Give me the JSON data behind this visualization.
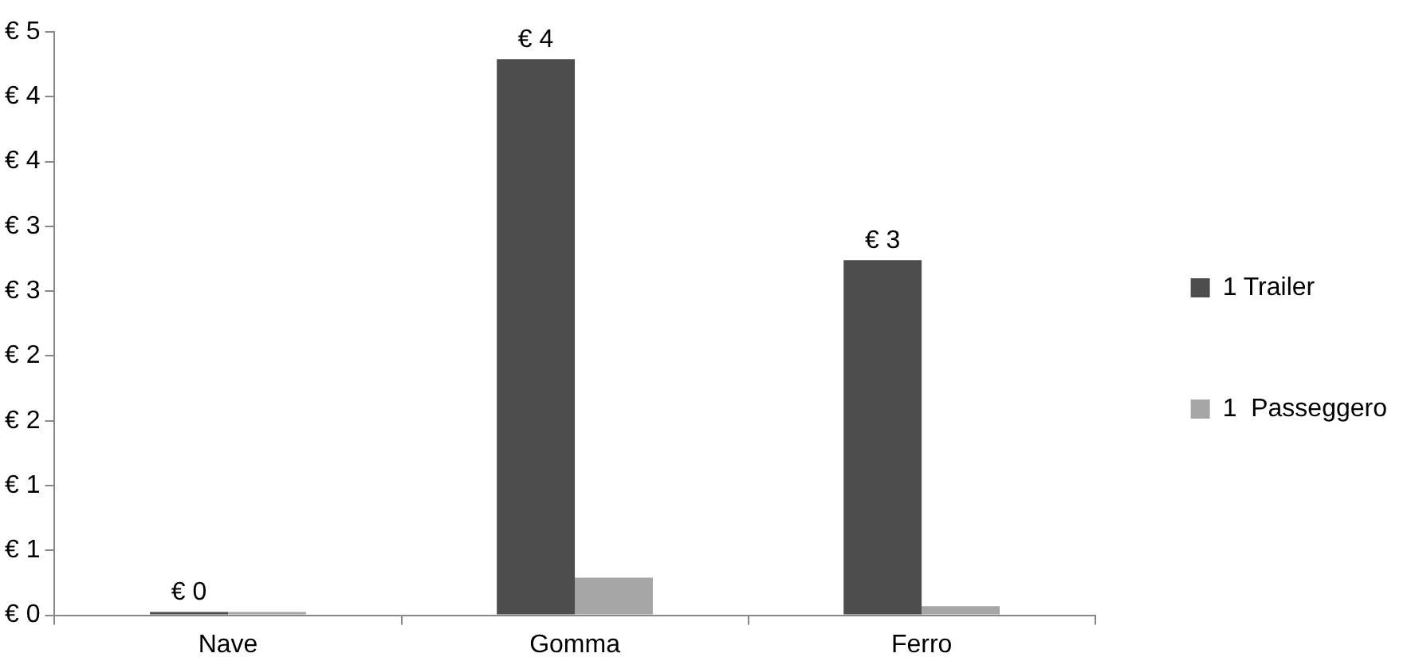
{
  "chart_data": {
    "type": "bar",
    "categories": [
      "Nave",
      "Gomma",
      "Ferro"
    ],
    "series": [
      {
        "name": "1 Trailer",
        "color": "#4d4d4d",
        "values": [
          0,
          4.29,
          2.74
        ],
        "value_labels": [
          "€ 0",
          "€ 4",
          "€ 3"
        ]
      },
      {
        "name": "1  Passeggero",
        "color": "#a6a6a6",
        "values": [
          0,
          0.29,
          0.07
        ]
      }
    ],
    "ylim": [
      0,
      4.5
    ],
    "yticks": [
      {
        "value": 0,
        "label": "€ 0"
      },
      {
        "value": 0.5,
        "label": "€ 1"
      },
      {
        "value": 1,
        "label": "€ 1"
      },
      {
        "value": 1.5,
        "label": "€ 2"
      },
      {
        "value": 2,
        "label": "€ 2"
      },
      {
        "value": 2.5,
        "label": "€ 3"
      },
      {
        "value": 3,
        "label": "€ 3"
      },
      {
        "value": 3.5,
        "label": "€ 4"
      },
      {
        "value": 4,
        "label": "€ 4"
      },
      {
        "value": 4.5,
        "label": "€ 5"
      }
    ],
    "grid": false,
    "legend": "right"
  }
}
